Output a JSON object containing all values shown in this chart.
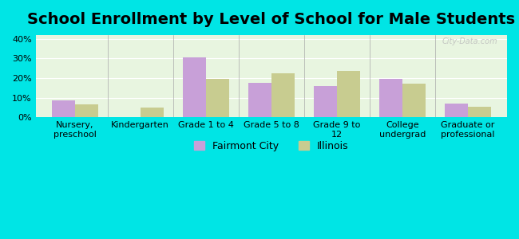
{
  "title": "School Enrollment by Level of School for Male Students",
  "categories": [
    "Nursery,\npreschool",
    "Kindergarten",
    "Grade 1 to 4",
    "Grade 5 to 8",
    "Grade 9 to\n12",
    "College\nundergrad",
    "Graduate or\nprofessional"
  ],
  "fairmont_city": [
    8.5,
    0,
    30.5,
    17.5,
    16,
    19.5,
    7
  ],
  "illinois": [
    6.5,
    5,
    19.5,
    22.5,
    23.5,
    17,
    5.5
  ],
  "fairmont_color": "#c8a0d8",
  "illinois_color": "#c8cc90",
  "background_color": "#00e5e5",
  "title_fontsize": 14,
  "tick_fontsize": 8,
  "legend_fontsize": 9,
  "ylim": [
    0,
    42
  ],
  "yticks": [
    0,
    10,
    20,
    30,
    40
  ],
  "bar_width": 0.35,
  "watermark": "City-Data.com",
  "legend_labels": [
    "Fairmont City",
    "Illinois"
  ]
}
